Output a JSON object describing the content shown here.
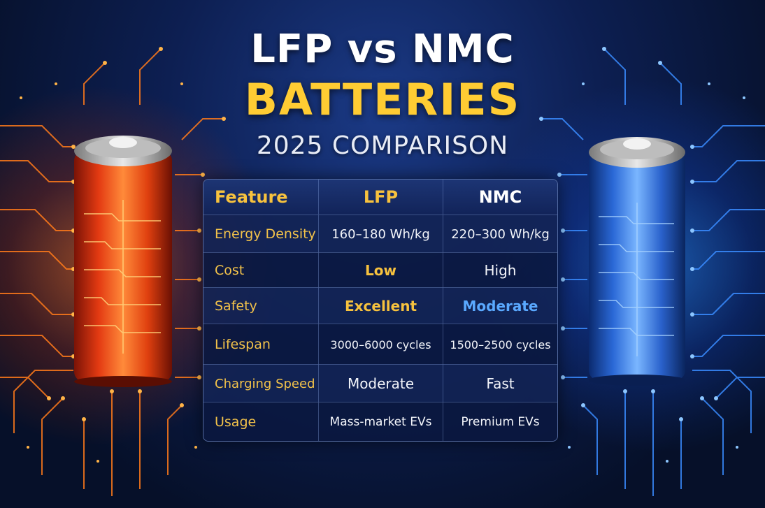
{
  "title": {
    "line1": "LFP vs NMC",
    "line2": "BATTERIES",
    "line3": "2025 COMPARISON"
  },
  "table": {
    "headers": {
      "feature": "Feature",
      "lfp": "LFP",
      "nmc": "NMC"
    },
    "rows": [
      {
        "feature": "Energy Density",
        "lfp": "160–180 Wh/kg",
        "nmc": "220–300 Wh/kg"
      },
      {
        "feature": "Cost",
        "lfp": "Low",
        "nmc": "High"
      },
      {
        "feature": "Safety",
        "lfp": "Excellent",
        "nmc": "Moderate"
      },
      {
        "feature": "Lifespan",
        "lfp": "3000–6000 cycles",
        "nmc": "1500–2500 cycles"
      },
      {
        "feature": "Charging Speed",
        "lfp": "Moderate",
        "nmc": "Fast"
      },
      {
        "feature": "Usage",
        "lfp": "Mass-market EVs",
        "nmc": "Premium EVs"
      }
    ]
  },
  "colors": {
    "accent_gold": "#f7c23e",
    "accent_blue": "#5aa9ff",
    "lfp_battery": "#e8401a",
    "nmc_battery": "#2e6fd8",
    "background": "#0d1f52"
  },
  "icons": {
    "left": "lfp-battery-icon",
    "right": "nmc-battery-icon"
  }
}
